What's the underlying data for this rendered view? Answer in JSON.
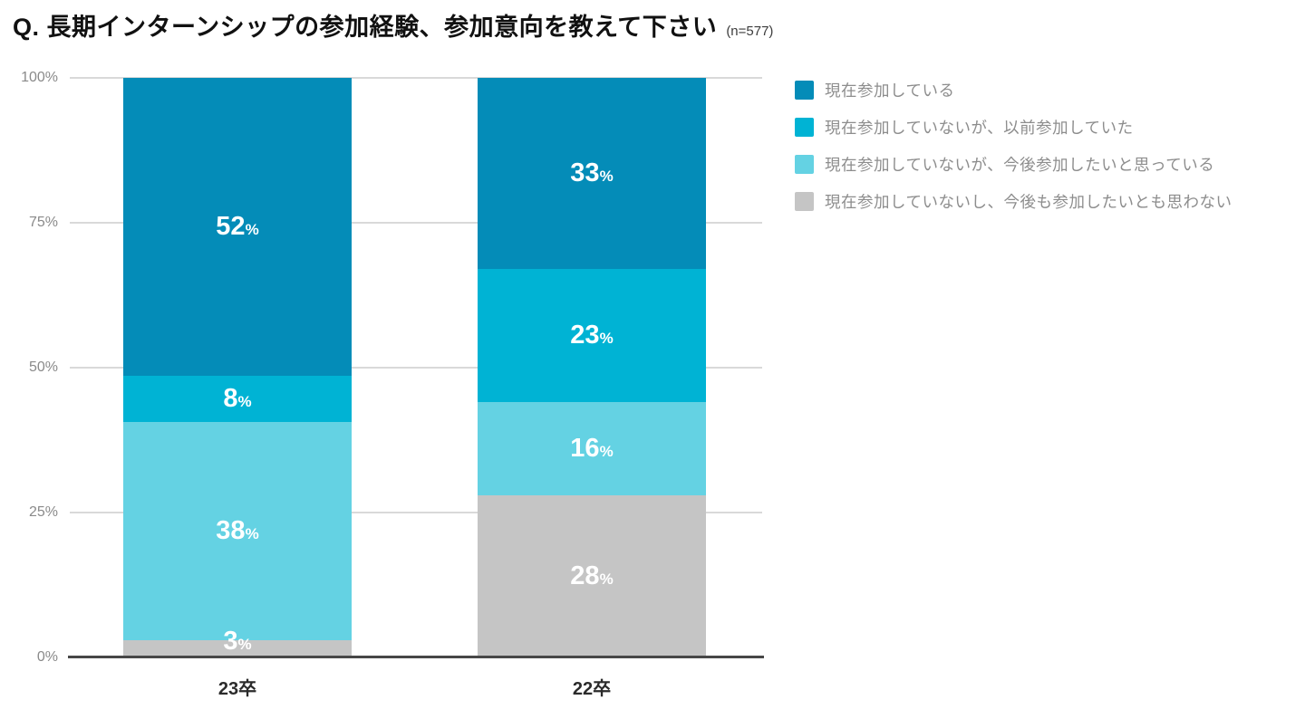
{
  "header": {
    "title": "Q. 長期インターンシップの参加経験、参加意向を教えて下さい",
    "sample_size": "(n=577)"
  },
  "chart_data": {
    "type": "bar",
    "stacked": true,
    "orientation": "vertical",
    "unit": "%",
    "title": "長期インターンシップの参加経験、参加意向",
    "sample_n": 577,
    "categories": [
      "23卒",
      "22卒"
    ],
    "series": [
      {
        "name": "現在参加している",
        "color": "#048cb8",
        "values": [
          52,
          33
        ]
      },
      {
        "name": "現在参加していないが、以前参加していた",
        "color": "#00b3d4",
        "values": [
          8,
          23
        ]
      },
      {
        "name": "現在参加していないが、今後参加したいと思っている",
        "color": "#64d2e3",
        "values": [
          38,
          16
        ]
      },
      {
        "name": "現在参加していないし、今後も参加したいとも思わない",
        "color": "#c5c5c5",
        "values": [
          3,
          28
        ]
      }
    ],
    "y_axis": {
      "min": 0,
      "max": 100,
      "ticks": [
        "0%",
        "25%",
        "50%",
        "75%",
        "100%"
      ]
    },
    "grid": true,
    "legend_position": "top-right",
    "value_labels": "inside-white"
  },
  "style": {
    "gridline_color": "#d9d9d9",
    "axis_line_color": "#474747",
    "tick_label_color": "#8a8a8a",
    "legend_text_color": "#8d8d8d"
  }
}
